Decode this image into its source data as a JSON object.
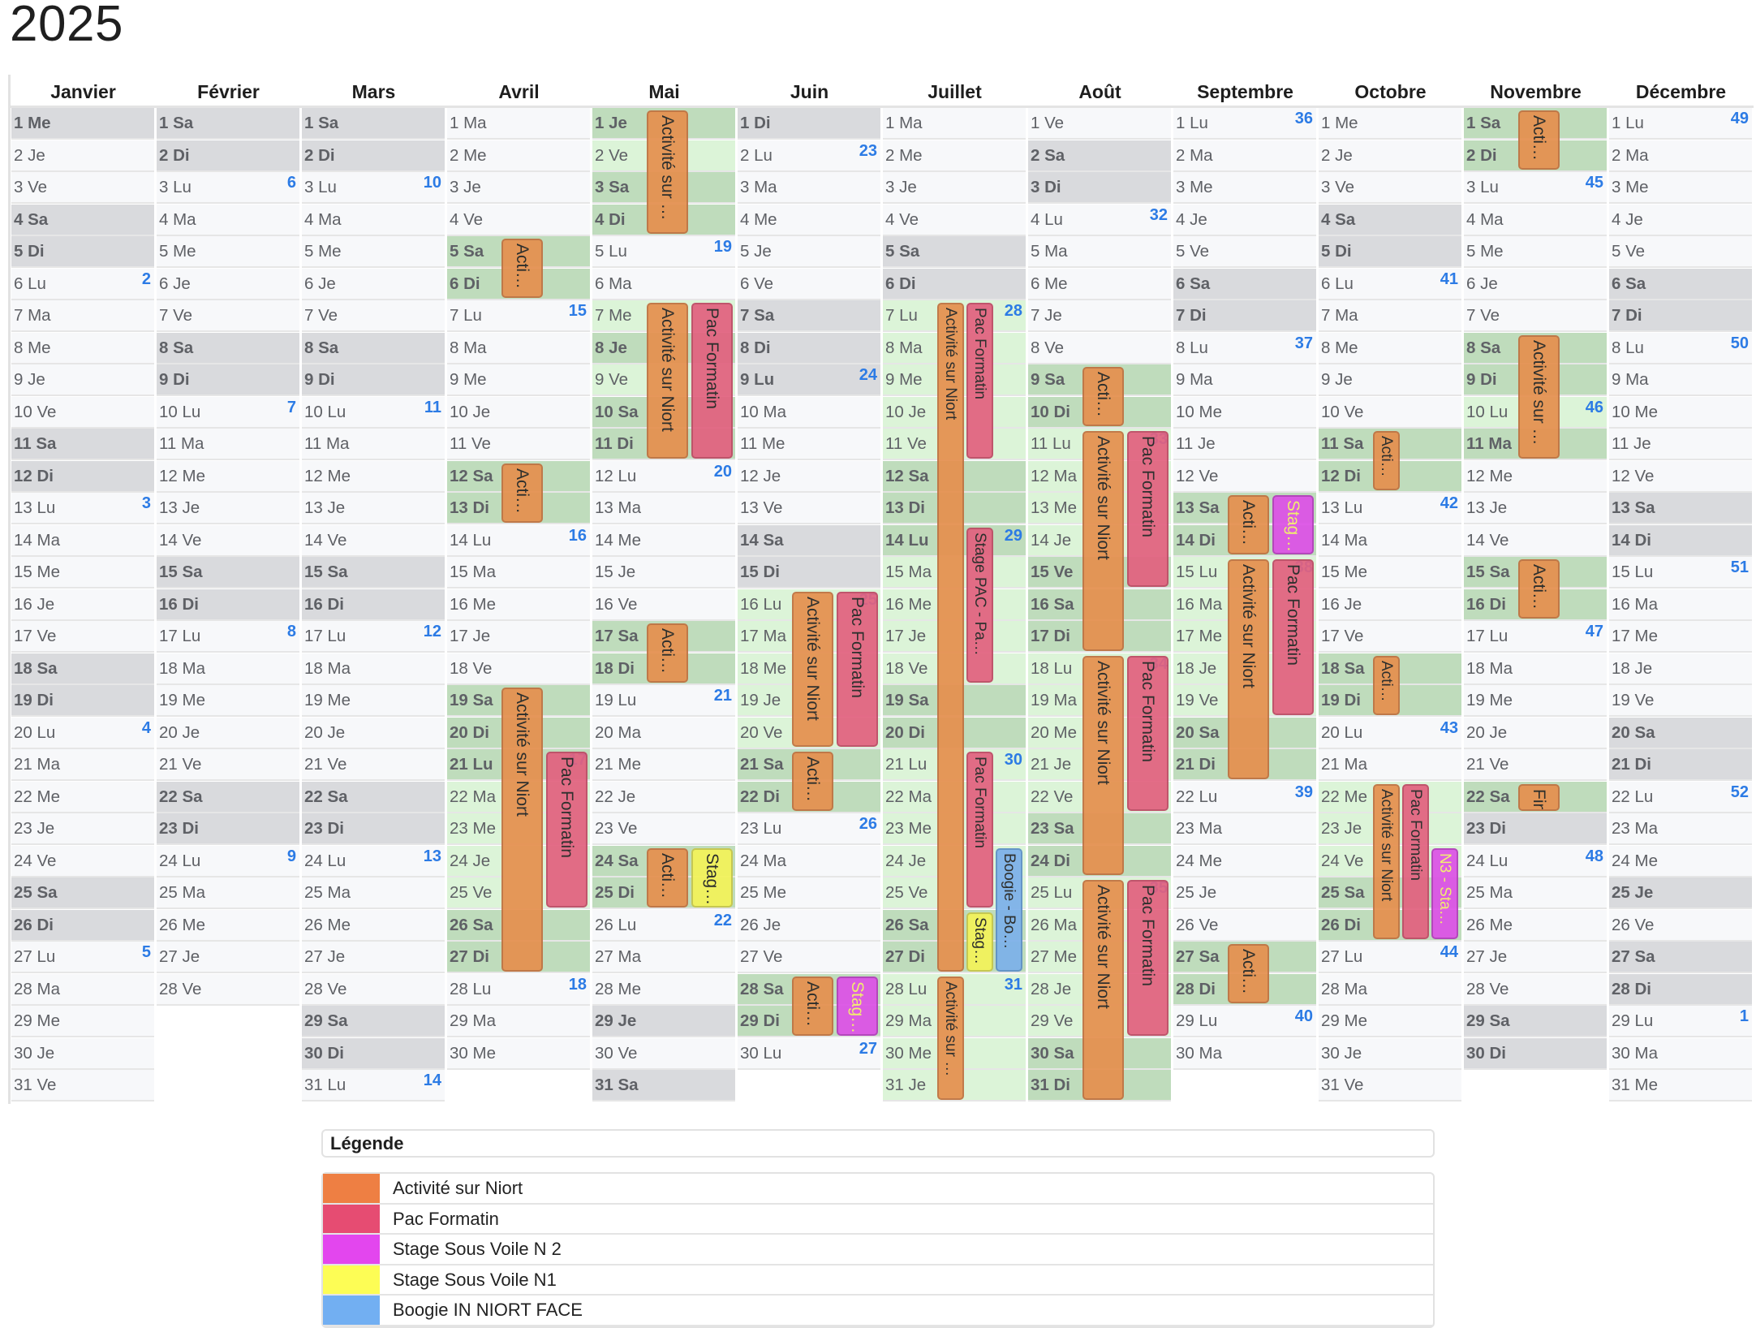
{
  "title": "2025",
  "months": [
    {
      "name": "Janvier",
      "days": [
        "1 Me",
        "2 Je",
        "3 Ve",
        "4 Sa",
        "5 Di",
        "6 Lu",
        "7 Ma",
        "8 Me",
        "9 Je",
        "10 Ve",
        "11 Sa",
        "12 Di",
        "13 Lu",
        "14 Ma",
        "15 Me",
        "16 Je",
        "17 Ve",
        "18 Sa",
        "19 Di",
        "20 Lu",
        "21 Ma",
        "22 Me",
        "23 Je",
        "24 Ve",
        "25 Sa",
        "26 Di",
        "27 Lu",
        "28 Ma",
        "29 Me",
        "30 Je",
        "31 Ve"
      ],
      "weeks": {
        "6": "2",
        "13": "3",
        "20": "4",
        "27": "5"
      },
      "holidays": [
        1
      ]
    },
    {
      "name": "Février",
      "days": [
        "1 Sa",
        "2 Di",
        "3 Lu",
        "4 Ma",
        "5 Me",
        "6 Je",
        "7 Ve",
        "8 Sa",
        "9 Di",
        "10 Lu",
        "11 Ma",
        "12 Me",
        "13 Je",
        "14 Ve",
        "15 Sa",
        "16 Di",
        "17 Lu",
        "18 Ma",
        "19 Me",
        "20 Je",
        "21 Ve",
        "22 Sa",
        "23 Di",
        "24 Lu",
        "25 Ma",
        "26 Me",
        "27 Je",
        "28 Ve"
      ],
      "weeks": {
        "3": "6",
        "10": "7",
        "17": "8",
        "24": "9"
      },
      "holidays": []
    },
    {
      "name": "Mars",
      "days": [
        "1 Sa",
        "2 Di",
        "3 Lu",
        "4 Ma",
        "5 Me",
        "6 Je",
        "7 Ve",
        "8 Sa",
        "9 Di",
        "10 Lu",
        "11 Ma",
        "12 Me",
        "13 Je",
        "14 Ve",
        "15 Sa",
        "16 Di",
        "17 Lu",
        "18 Ma",
        "19 Me",
        "20 Je",
        "21 Ve",
        "22 Sa",
        "23 Di",
        "24 Lu",
        "25 Ma",
        "26 Me",
        "27 Je",
        "28 Ve",
        "29 Sa",
        "30 Di",
        "31 Lu"
      ],
      "weeks": {
        "3": "10",
        "10": "11",
        "17": "12",
        "24": "13",
        "31": "14"
      },
      "holidays": []
    },
    {
      "name": "Avril",
      "days": [
        "1 Ma",
        "2 Me",
        "3 Je",
        "4 Ve",
        "5 Sa",
        "6 Di",
        "7 Lu",
        "8 Ma",
        "9 Me",
        "10 Je",
        "11 Ve",
        "12 Sa",
        "13 Di",
        "14 Lu",
        "15 Ma",
        "16 Me",
        "17 Je",
        "18 Ve",
        "19 Sa",
        "20 Di",
        "21 Lu",
        "22 Ma",
        "23 Me",
        "24 Je",
        "25 Ve",
        "26 Sa",
        "27 Di",
        "28 Lu",
        "29 Ma",
        "30 Me"
      ],
      "weeks": {
        "7": "15",
        "14": "16",
        "21": "17",
        "28": "18"
      },
      "holidays": [
        21
      ]
    },
    {
      "name": "Mai",
      "days": [
        "1 Je",
        "2 Ve",
        "3 Sa",
        "4 Di",
        "5 Lu",
        "6 Ma",
        "7 Me",
        "8 Je",
        "9 Ve",
        "10 Sa",
        "11 Di",
        "12 Lu",
        "13 Ma",
        "14 Me",
        "15 Je",
        "16 Ve",
        "17 Sa",
        "18 Di",
        "19 Lu",
        "20 Ma",
        "21 Me",
        "22 Je",
        "23 Ve",
        "24 Sa",
        "25 Di",
        "26 Lu",
        "27 Ma",
        "28 Me",
        "29 Je",
        "30 Ve",
        "31 Sa"
      ],
      "weeks": {
        "5": "19",
        "12": "20",
        "19": "21",
        "26": "22"
      },
      "holidays": [
        1,
        8,
        29
      ]
    },
    {
      "name": "Juin",
      "days": [
        "1 Di",
        "2 Lu",
        "3 Ma",
        "4 Me",
        "5 Je",
        "6 Ve",
        "7 Sa",
        "8 Di",
        "9 Lu",
        "10 Ma",
        "11 Me",
        "12 Je",
        "13 Ve",
        "14 Sa",
        "15 Di",
        "16 Lu",
        "17 Ma",
        "18 Me",
        "19 Je",
        "20 Ve",
        "21 Sa",
        "22 Di",
        "23 Lu",
        "24 Ma",
        "25 Me",
        "26 Je",
        "27 Ve",
        "28 Sa",
        "29 Di",
        "30 Lu"
      ],
      "weeks": {
        "2": "23",
        "9": "24",
        "16": "25",
        "23": "26",
        "30": "27"
      },
      "holidays": [
        9
      ]
    },
    {
      "name": "Juillet",
      "days": [
        "1 Ma",
        "2 Me",
        "3 Je",
        "4 Ve",
        "5 Sa",
        "6 Di",
        "7 Lu",
        "8 Ma",
        "9 Me",
        "10 Je",
        "11 Ve",
        "12 Sa",
        "13 Di",
        "14 Lu",
        "15 Ma",
        "16 Me",
        "17 Je",
        "18 Ve",
        "19 Sa",
        "20 Di",
        "21 Lu",
        "22 Ma",
        "23 Me",
        "24 Je",
        "25 Ve",
        "26 Sa",
        "27 Di",
        "28 Lu",
        "29 Ma",
        "30 Me",
        "31 Je"
      ],
      "weeks": {
        "7": "28",
        "14": "29",
        "21": "30",
        "28": "31"
      },
      "holidays": [
        14
      ]
    },
    {
      "name": "Août",
      "days": [
        "1 Ve",
        "2 Sa",
        "3 Di",
        "4 Lu",
        "5 Ma",
        "6 Me",
        "7 Je",
        "8 Ve",
        "9 Sa",
        "10 Di",
        "11 Lu",
        "12 Ma",
        "13 Me",
        "14 Je",
        "15 Ve",
        "16 Sa",
        "17 Di",
        "18 Lu",
        "19 Ma",
        "20 Me",
        "21 Je",
        "22 Ve",
        "23 Sa",
        "24 Di",
        "25 Lu",
        "26 Ma",
        "27 Me",
        "28 Je",
        "29 Ve",
        "30 Sa",
        "31 Di"
      ],
      "weeks": {
        "4": "32",
        "11": "33",
        "18": "34",
        "25": "35"
      },
      "holidays": [
        15
      ]
    },
    {
      "name": "Septembre",
      "days": [
        "1 Lu",
        "2 Ma",
        "3 Me",
        "4 Je",
        "5 Ve",
        "6 Sa",
        "7 Di",
        "8 Lu",
        "9 Ma",
        "10 Me",
        "11 Je",
        "12 Ve",
        "13 Sa",
        "14 Di",
        "15 Lu",
        "16 Ma",
        "17 Me",
        "18 Je",
        "19 Ve",
        "20 Sa",
        "21 Di",
        "22 Lu",
        "23 Ma",
        "24 Me",
        "25 Je",
        "26 Ve",
        "27 Sa",
        "28 Di",
        "29 Lu",
        "30 Ma"
      ],
      "weeks": {
        "1": "36",
        "8": "37",
        "15": "38",
        "22": "39",
        "29": "40"
      },
      "holidays": []
    },
    {
      "name": "Octobre",
      "days": [
        "1 Me",
        "2 Je",
        "3 Ve",
        "4 Sa",
        "5 Di",
        "6 Lu",
        "7 Ma",
        "8 Me",
        "9 Je",
        "10 Ve",
        "11 Sa",
        "12 Di",
        "13 Lu",
        "14 Ma",
        "15 Me",
        "16 Je",
        "17 Ve",
        "18 Sa",
        "19 Di",
        "20 Lu",
        "21 Ma",
        "22 Me",
        "23 Je",
        "24 Ve",
        "25 Sa",
        "26 Di",
        "27 Lu",
        "28 Ma",
        "29 Me",
        "30 Je",
        "31 Ve"
      ],
      "weeks": {
        "6": "41",
        "13": "42",
        "20": "43",
        "27": "44"
      },
      "holidays": []
    },
    {
      "name": "Novembre",
      "days": [
        "1 Sa",
        "2 Di",
        "3 Lu",
        "4 Ma",
        "5 Me",
        "6 Je",
        "7 Ve",
        "8 Sa",
        "9 Di",
        "10 Lu",
        "11 Ma",
        "12 Me",
        "13 Je",
        "14 Ve",
        "15 Sa",
        "16 Di",
        "17 Lu",
        "18 Ma",
        "19 Me",
        "20 Je",
        "21 Ve",
        "22 Sa",
        "23 Di",
        "24 Lu",
        "25 Ma",
        "26 Me",
        "27 Je",
        "28 Ve",
        "29 Sa",
        "30 Di"
      ],
      "weeks": {
        "3": "45",
        "10": "46",
        "17": "47",
        "24": "48"
      },
      "holidays": [
        1,
        11
      ]
    },
    {
      "name": "Décembre",
      "days": [
        "1 Lu",
        "2 Ma",
        "3 Me",
        "4 Je",
        "5 Ve",
        "6 Sa",
        "7 Di",
        "8 Lu",
        "9 Ma",
        "10 Me",
        "11 Je",
        "12 Ve",
        "13 Sa",
        "14 Di",
        "15 Lu",
        "16 Ma",
        "17 Me",
        "18 Je",
        "19 Ve",
        "20 Sa",
        "21 Di",
        "22 Lu",
        "23 Ma",
        "24 Me",
        "25 Je",
        "26 Ve",
        "27 Sa",
        "28 Di",
        "29 Lu",
        "30 Ma",
        "31 Me"
      ],
      "weeks": {
        "1": "49",
        "8": "50",
        "15": "51",
        "22": "52",
        "29": "1"
      },
      "holidays": [
        25
      ]
    }
  ],
  "event_types": {
    "niort": {
      "fill": "#e5904f",
      "border": "#bf7140",
      "text": "#222222"
    },
    "pac": {
      "fill": "#e2627f",
      "border": "#bd4a64",
      "text": "#222222"
    },
    "n2": {
      "fill": "#dd52e6",
      "border": "#b33cbb",
      "text": "#f4ee6a"
    },
    "n1": {
      "fill": "#f3f35a",
      "border": "#c6c64a",
      "text": "#222222"
    },
    "boogie": {
      "fill": "#7db1ea",
      "border": "#5d8fc6",
      "text": "#222222"
    }
  },
  "events": [
    {
      "month": 3,
      "start": 5,
      "end": 6,
      "type": "niort",
      "label": "Acti…"
    },
    {
      "month": 3,
      "start": 12,
      "end": 13,
      "type": "niort",
      "label": "Acti…"
    },
    {
      "month": 3,
      "start": 19,
      "end": 27,
      "type": "niort",
      "label": "Activité sur Niort"
    },
    {
      "month": 3,
      "start": 21,
      "end": 25,
      "type": "pac",
      "label": "Pac Formatin"
    },
    {
      "month": 4,
      "start": 1,
      "end": 4,
      "type": "niort",
      "label": "Activité sur …"
    },
    {
      "month": 4,
      "start": 7,
      "end": 11,
      "type": "niort",
      "label": "Activité sur Niort"
    },
    {
      "month": 4,
      "start": 7,
      "end": 11,
      "type": "pac",
      "label": "Pac Formatin"
    },
    {
      "month": 4,
      "start": 17,
      "end": 18,
      "type": "niort",
      "label": "Acti…"
    },
    {
      "month": 4,
      "start": 24,
      "end": 25,
      "type": "niort",
      "label": "Acti…"
    },
    {
      "month": 4,
      "start": 24,
      "end": 25,
      "type": "n1",
      "label": "Stag…"
    },
    {
      "month": 5,
      "start": 16,
      "end": 20,
      "type": "niort",
      "label": "Activité sur Niort"
    },
    {
      "month": 5,
      "start": 16,
      "end": 20,
      "type": "pac",
      "label": "Pac Formatin"
    },
    {
      "month": 5,
      "start": 21,
      "end": 22,
      "type": "niort",
      "label": "Acti…"
    },
    {
      "month": 5,
      "start": 28,
      "end": 29,
      "type": "niort",
      "label": "Acti…"
    },
    {
      "month": 5,
      "start": 28,
      "end": 29,
      "type": "n2",
      "label": "Stag…"
    },
    {
      "month": 6,
      "start": 7,
      "end": 27,
      "type": "niort",
      "label": "Activité sur Niort"
    },
    {
      "month": 6,
      "start": 7,
      "end": 11,
      "type": "pac",
      "label": "Pac Formatin"
    },
    {
      "month": 6,
      "start": 14,
      "end": 18,
      "type": "pac",
      "label": "Stage PAC - Pa…"
    },
    {
      "month": 6,
      "start": 21,
      "end": 25,
      "type": "pac",
      "label": "Pac Formatin"
    },
    {
      "month": 6,
      "start": 24,
      "end": 27,
      "type": "boogie",
      "label": "Boogie - Bo…"
    },
    {
      "month": 6,
      "start": 26,
      "end": 27,
      "type": "n1",
      "label": "Stag…"
    },
    {
      "month": 6,
      "start": 28,
      "end": 31,
      "type": "niort",
      "label": "Activité sur …"
    },
    {
      "month": 7,
      "start": 9,
      "end": 10,
      "type": "niort",
      "label": "Acti…"
    },
    {
      "month": 7,
      "start": 11,
      "end": 17,
      "type": "niort",
      "label": "Activité sur Niort"
    },
    {
      "month": 7,
      "start": 11,
      "end": 15,
      "type": "pac",
      "label": "Pac Formatin"
    },
    {
      "month": 7,
      "start": 18,
      "end": 24,
      "type": "niort",
      "label": "Activité sur Niort"
    },
    {
      "month": 7,
      "start": 18,
      "end": 22,
      "type": "pac",
      "label": "Pac Formatin"
    },
    {
      "month": 7,
      "start": 25,
      "end": 31,
      "type": "niort",
      "label": "Activité sur Niort"
    },
    {
      "month": 7,
      "start": 25,
      "end": 29,
      "type": "pac",
      "label": "Pac Formatin"
    },
    {
      "month": 8,
      "start": 13,
      "end": 14,
      "type": "niort",
      "label": "Acti…"
    },
    {
      "month": 8,
      "start": 13,
      "end": 14,
      "type": "n2",
      "label": "Stag…"
    },
    {
      "month": 8,
      "start": 15,
      "end": 21,
      "type": "niort",
      "label": "Activité sur Niort"
    },
    {
      "month": 8,
      "start": 15,
      "end": 19,
      "type": "pac",
      "label": "Pac Formatin"
    },
    {
      "month": 8,
      "start": 27,
      "end": 28,
      "type": "niort",
      "label": "Acti…"
    },
    {
      "month": 9,
      "start": 11,
      "end": 12,
      "type": "niort",
      "label": "Acti…"
    },
    {
      "month": 9,
      "start": 18,
      "end": 19,
      "type": "niort",
      "label": "Acti…"
    },
    {
      "month": 9,
      "start": 22,
      "end": 26,
      "type": "niort",
      "label": "Activité sur Niort"
    },
    {
      "month": 9,
      "start": 22,
      "end": 26,
      "type": "pac",
      "label": "Pac Formatin"
    },
    {
      "month": 9,
      "start": 24,
      "end": 26,
      "type": "n2",
      "label": "N3 - Sta…"
    },
    {
      "month": 10,
      "start": 1,
      "end": 2,
      "type": "niort",
      "label": "Acti…"
    },
    {
      "month": 10,
      "start": 8,
      "end": 11,
      "type": "niort",
      "label": "Activité sur …"
    },
    {
      "month": 10,
      "start": 15,
      "end": 16,
      "type": "niort",
      "label": "Acti…"
    },
    {
      "month": 10,
      "start": 22,
      "end": 22,
      "type": "niort",
      "label": "Fin"
    }
  ],
  "legend": {
    "title": "Légende",
    "items": [
      {
        "label": "Activité sur Niort",
        "color": "#ee7f43"
      },
      {
        "label": "Pac Formatin",
        "color": "#e64c72"
      },
      {
        "label": "Stage Sous Voile N 2",
        "color": "#e346ee"
      },
      {
        "label": "Stage Sous Voile N1",
        "color": "#fdfd55"
      },
      {
        "label": "Boogie IN NIORT FACE",
        "color": "#72aff2"
      }
    ]
  }
}
